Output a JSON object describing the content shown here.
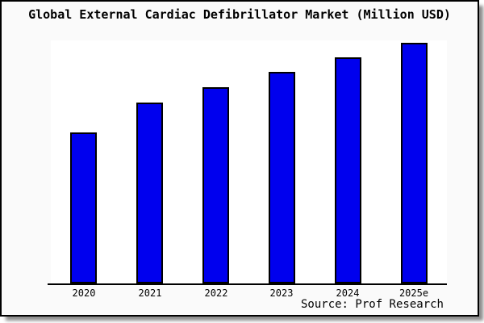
{
  "chart": {
    "title": "Global External Cardiac Defibrillator Market (Million USD)",
    "source_note": "Source: Prof Research"
  },
  "chart_data": {
    "type": "bar",
    "title": "Global External Cardiac Defibrillator Market (Million USD)",
    "categories": [
      "2020",
      "2021",
      "2022",
      "2023",
      "2024",
      "2025e"
    ],
    "values_pct_of_max": [
      62.8,
      75.2,
      81.5,
      87.9,
      94.0,
      100.0
    ],
    "value_axis_labeled": false,
    "value_unit": "Million USD",
    "xlabel": "",
    "ylabel": "",
    "grid": false,
    "legend": false,
    "bar_color": "#0000ee",
    "bar_border_color": "#000000",
    "plot_background": "#ffffff",
    "frame_background": "#fafafa",
    "annotations": [
      "Source: Prof Research"
    ]
  }
}
